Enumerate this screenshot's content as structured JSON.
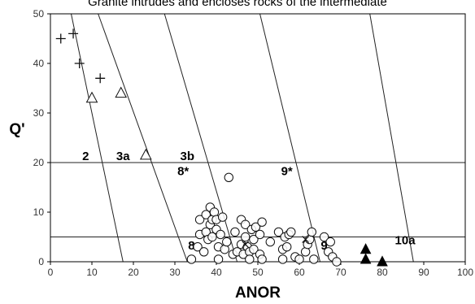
{
  "chart_data": {
    "type": "scatter",
    "title": "Granite intrudes and encloses rocks of the intermediate",
    "xlabel": "ANOR",
    "ylabel": "Q'",
    "xlim": [
      0,
      100
    ],
    "ylim": [
      0,
      50
    ],
    "xticks": [
      0,
      10,
      20,
      30,
      40,
      50,
      60,
      70,
      80,
      90,
      100
    ],
    "yticks": [
      0,
      10,
      20,
      30,
      40,
      50
    ],
    "grid": false,
    "horizontal_lines": [
      5,
      20
    ],
    "field_boundaries": [
      {
        "x1": 5,
        "y1": 50,
        "x2": 17.5,
        "y2": 0
      },
      {
        "x1": 11.5,
        "y1": 50,
        "x2": 33,
        "y2": 0
      },
      {
        "x1": 27.5,
        "y1": 50,
        "x2": 45,
        "y2": 0
      },
      {
        "x1": 50.5,
        "y1": 50,
        "x2": 65,
        "y2": 0
      },
      {
        "x1": 77,
        "y1": 50,
        "x2": 87.5,
        "y2": 0
      }
    ],
    "field_labels": [
      {
        "text": "2",
        "x": 8.5,
        "y": 20.5
      },
      {
        "text": "3a",
        "x": 17.5,
        "y": 20.5
      },
      {
        "text": "3b",
        "x": 33,
        "y": 20.5
      },
      {
        "text": "8*",
        "x": 32,
        "y": 17.5
      },
      {
        "text": "9*",
        "x": 57,
        "y": 17.5
      },
      {
        "text": "8",
        "x": 34,
        "y": 2.5
      },
      {
        "text": "9",
        "x": 66,
        "y": 2.5
      },
      {
        "text": "10a",
        "x": 85.5,
        "y": 3.5
      }
    ],
    "series": [
      {
        "marker": "plus",
        "points": [
          [
            2.5,
            45
          ],
          [
            5.5,
            46
          ],
          [
            7,
            40
          ],
          [
            12,
            37
          ]
        ]
      },
      {
        "marker": "triangle-open",
        "points": [
          [
            10,
            33
          ],
          [
            17,
            34
          ],
          [
            23,
            21.5
          ]
        ]
      },
      {
        "marker": "circle-open",
        "points": [
          [
            34,
            0.5
          ],
          [
            35.5,
            3
          ],
          [
            36,
            5.5
          ],
          [
            36,
            8.5
          ],
          [
            37,
            2
          ],
          [
            37.5,
            6
          ],
          [
            37.5,
            9.5
          ],
          [
            38,
            4.5
          ],
          [
            38.5,
            7.5
          ],
          [
            38.5,
            11
          ],
          [
            39,
            8.5
          ],
          [
            39,
            5
          ],
          [
            39.5,
            10
          ],
          [
            40,
            6.5
          ],
          [
            40,
            8.5
          ],
          [
            40.5,
            3
          ],
          [
            40.5,
            0.5
          ],
          [
            41,
            5.5
          ],
          [
            41.5,
            9
          ],
          [
            42,
            2.5
          ],
          [
            42.5,
            4
          ],
          [
            43,
            17
          ],
          [
            44,
            1.5
          ],
          [
            44.5,
            6
          ],
          [
            45,
            2
          ],
          [
            46,
            8.5
          ],
          [
            46,
            3.5
          ],
          [
            46.5,
            1.5
          ],
          [
            47,
            7.5
          ],
          [
            47,
            5
          ],
          [
            47.5,
            3
          ],
          [
            48,
            2
          ],
          [
            48,
            0.5
          ],
          [
            48.5,
            6.5
          ],
          [
            49,
            4.5
          ],
          [
            49,
            2.5
          ],
          [
            49.5,
            7
          ],
          [
            50.5,
            5.5
          ],
          [
            50.5,
            1.5
          ],
          [
            51,
            8
          ],
          [
            51,
            0.5
          ],
          [
            53,
            4
          ],
          [
            55,
            6
          ],
          [
            56,
            2.5
          ],
          [
            56,
            0.5
          ],
          [
            56.5,
            5
          ],
          [
            57,
            3
          ],
          [
            57.5,
            5.5
          ],
          [
            58,
            6
          ],
          [
            59,
            1
          ],
          [
            60,
            0.5
          ],
          [
            61.5,
            2
          ],
          [
            62,
            3.5
          ],
          [
            62.5,
            4.5
          ],
          [
            63,
            6
          ],
          [
            63.5,
            0.5
          ],
          [
            66,
            5
          ],
          [
            67,
            2
          ],
          [
            67.5,
            4
          ],
          [
            68,
            1
          ],
          [
            69,
            0
          ]
        ]
      },
      {
        "marker": "cross",
        "points": [
          [
            47,
            3.5
          ],
          [
            61.5,
            4.5
          ]
        ]
      },
      {
        "marker": "triangle-filled",
        "points": [
          [
            76,
            2.5
          ],
          [
            76,
            0.5
          ],
          [
            80,
            0
          ]
        ]
      }
    ]
  }
}
